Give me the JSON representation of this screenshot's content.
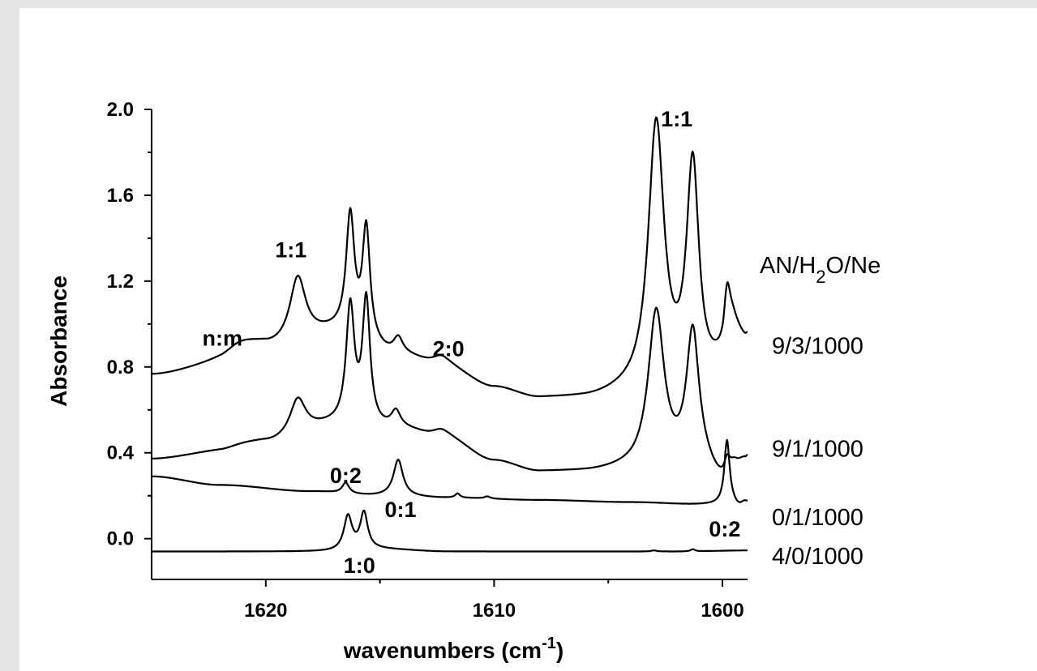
{
  "chart_data": {
    "type": "line",
    "xlabel": "wavenumbers (cm",
    "xlabel_sup": "-1",
    "xlabel_end": ")",
    "ylabel": "Absorbance",
    "xlim": [
      1625,
      1598.9
    ],
    "ylim": [
      -0.19,
      2.0
    ],
    "x_ticks": [
      1620,
      1610,
      1600
    ],
    "x_tick_labels": [
      "1620",
      "1610",
      "1600"
    ],
    "y_ticks": [
      0.0,
      0.4,
      0.8,
      1.2,
      1.6,
      2.0
    ],
    "y_tick_labels": [
      "0.0",
      "0.4",
      "0.8",
      "1.2",
      "1.6",
      "2.0"
    ],
    "legend_title": {
      "prefix": "AN/H",
      "sub": "2",
      "suffix": "O/Ne"
    },
    "series": [
      {
        "name": "9/3/1000",
        "baseline": [
          [
            1625,
            0.76
          ],
          [
            1622,
            0.8
          ],
          [
            1620,
            0.87
          ],
          [
            1617,
            0.95
          ],
          [
            1614,
            0.84
          ],
          [
            1612,
            0.78
          ],
          [
            1610,
            0.7
          ],
          [
            1608,
            0.65
          ],
          [
            1606,
            0.65
          ],
          [
            1604,
            0.67
          ],
          [
            1603,
            0.68
          ],
          [
            1601,
            0.7
          ],
          [
            1600,
            0.78
          ],
          [
            1599.5,
            0.95
          ],
          [
            1599,
            0.91
          ],
          [
            1598.9,
            0.92
          ]
        ],
        "peaks": [
          [
            1621.2,
            0.08,
            1.0
          ],
          [
            1618.6,
            0.3,
            0.42
          ],
          [
            1616.3,
            0.55,
            0.22
          ],
          [
            1615.6,
            0.52,
            0.2
          ],
          [
            1614.2,
            0.08,
            0.25
          ],
          [
            1612.3,
            0.06,
            0.5
          ],
          [
            1602.9,
            1.24,
            0.42
          ],
          [
            1601.3,
            1.02,
            0.33
          ],
          [
            1599.8,
            0.28,
            0.18
          ]
        ]
      },
      {
        "name": "9/1/1000",
        "baseline": [
          [
            1625,
            0.37
          ],
          [
            1622,
            0.4
          ],
          [
            1620,
            0.44
          ],
          [
            1617,
            0.52
          ],
          [
            1614,
            0.5
          ],
          [
            1612,
            0.45
          ],
          [
            1610,
            0.36
          ],
          [
            1608,
            0.31
          ],
          [
            1606,
            0.31
          ],
          [
            1604,
            0.32
          ],
          [
            1603,
            0.33
          ],
          [
            1601,
            0.33
          ],
          [
            1600,
            0.26
          ],
          [
            1599.4,
            0.34
          ],
          [
            1599,
            0.36
          ],
          [
            1598.9,
            0.37
          ]
        ],
        "peaks": [
          [
            1621.2,
            0.02,
            1.0
          ],
          [
            1618.6,
            0.17,
            0.42
          ],
          [
            1616.3,
            0.55,
            0.22
          ],
          [
            1615.6,
            0.58,
            0.2
          ],
          [
            1614.3,
            0.08,
            0.25
          ],
          [
            1612.3,
            0.05,
            0.5
          ],
          [
            1602.9,
            0.72,
            0.42
          ],
          [
            1601.3,
            0.62,
            0.33
          ],
          [
            1599.8,
            0.07,
            0.15
          ]
        ]
      },
      {
        "name": "0/1/1000",
        "baseline": [
          [
            1625,
            0.29
          ],
          [
            1622,
            0.25
          ],
          [
            1618,
            0.22
          ],
          [
            1615,
            0.2
          ],
          [
            1612,
            0.19
          ],
          [
            1608,
            0.18
          ],
          [
            1604,
            0.17
          ],
          [
            1601,
            0.16
          ],
          [
            1599.6,
            0.16
          ],
          [
            1599.3,
            0.15
          ],
          [
            1599,
            0.17
          ],
          [
            1598.9,
            0.17
          ]
        ],
        "peaks": [
          [
            1616.5,
            0.05,
            0.18
          ],
          [
            1614.2,
            0.17,
            0.25
          ],
          [
            1611.6,
            0.02,
            0.12
          ],
          [
            1610.3,
            0.01,
            0.15
          ],
          [
            1599.8,
            0.3,
            0.14
          ]
        ]
      },
      {
        "name": "4/0/1000",
        "baseline": [
          [
            1625,
            -0.06
          ],
          [
            1617,
            -0.06
          ],
          [
            1615,
            -0.05
          ],
          [
            1612,
            -0.06
          ],
          [
            1608,
            -0.06
          ],
          [
            1602,
            -0.06
          ],
          [
            1598.9,
            -0.055
          ]
        ],
        "peaks": [
          [
            1616.4,
            0.16,
            0.22
          ],
          [
            1615.7,
            0.17,
            0.2
          ],
          [
            1601.3,
            0.01,
            0.12
          ],
          [
            1603,
            0.005,
            0.15
          ]
        ]
      }
    ],
    "annotations": [
      {
        "text": "n:m",
        "x": 1621.9,
        "y": 0.9
      },
      {
        "text": "1:1",
        "x": 1618.9,
        "y": 1.31
      },
      {
        "text": "2:0",
        "x": 1612.0,
        "y": 0.85
      },
      {
        "text": "1:1",
        "x": 1602.0,
        "y": 1.92
      },
      {
        "text": "0:2",
        "x": 1616.5,
        "y": 0.26
      },
      {
        "text": "0:1",
        "x": 1614.1,
        "y": 0.1
      },
      {
        "text": "1:0",
        "x": 1615.9,
        "y": -0.16
      },
      {
        "text": "0:2",
        "x": 1599.9,
        "y": 0.01
      }
    ],
    "legend_entries": [
      {
        "text": "9/3/1000",
        "y": 0.9
      },
      {
        "text": "9/1/1000",
        "y": 0.42
      },
      {
        "text": "0/1/1000",
        "y": 0.1
      },
      {
        "text": "4/0/1000",
        "y": -0.08
      }
    ],
    "grid": false
  }
}
